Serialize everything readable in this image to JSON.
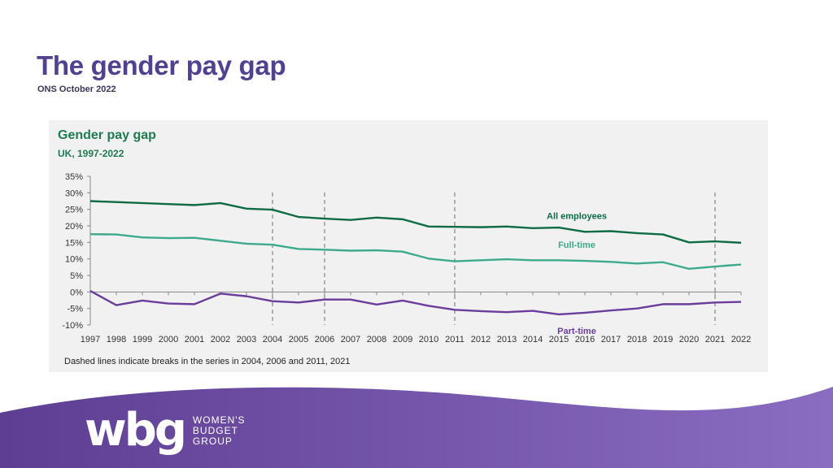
{
  "slide": {
    "title": "The gender pay gap",
    "subtitle": "ONS October 2022"
  },
  "chart_data": {
    "type": "line",
    "title": "Gender pay gap",
    "subtitle": "UK, 1997-2022",
    "note": "Dashed lines indicate breaks in the series in 2004, 2006 and 2011, 2021",
    "x": [
      1997,
      1998,
      1999,
      2000,
      2001,
      2002,
      2003,
      2004,
      2005,
      2006,
      2007,
      2008,
      2009,
      2010,
      2011,
      2012,
      2013,
      2014,
      2015,
      2016,
      2017,
      2018,
      2019,
      2020,
      2021,
      2022
    ],
    "ylim": [
      -10,
      35
    ],
    "yticks": [
      "35%",
      "30%",
      "25%",
      "20%",
      "15%",
      "10%",
      "5%",
      "0%",
      "-5%",
      "-10%"
    ],
    "ytick_values": [
      35,
      30,
      25,
      20,
      15,
      10,
      5,
      0,
      -5,
      -10
    ],
    "grid": false,
    "breaks": [
      2004,
      2006,
      2011,
      2021
    ],
    "series": [
      {
        "name": "All employees",
        "color": "#0e6b45",
        "values": [
          27.5,
          27.2,
          26.9,
          26.6,
          26.3,
          26.9,
          25.2,
          24.9,
          22.7,
          22.2,
          21.8,
          22.5,
          22.0,
          19.8,
          19.7,
          19.6,
          19.8,
          19.3,
          19.5,
          18.2,
          18.4,
          17.8,
          17.4,
          15.0,
          15.3,
          14.9
        ]
      },
      {
        "name": "Full-time",
        "color": "#3daa8c",
        "values": [
          17.5,
          17.4,
          16.5,
          16.3,
          16.4,
          15.5,
          14.6,
          14.3,
          13.0,
          12.8,
          12.5,
          12.6,
          12.2,
          10.1,
          9.3,
          9.6,
          9.9,
          9.6,
          9.6,
          9.4,
          9.1,
          8.6,
          9.0,
          7.0,
          7.7,
          8.3
        ]
      },
      {
        "name": "Part-time",
        "color": "#6a3d9a",
        "values": [
          0.3,
          -4.0,
          -2.6,
          -3.5,
          -3.7,
          -0.5,
          -1.3,
          -2.8,
          -3.2,
          -2.3,
          -2.3,
          -3.8,
          -2.6,
          -4.2,
          -5.4,
          -5.8,
          -6.1,
          -5.7,
          -6.8,
          -6.3,
          -5.6,
          -5.0,
          -3.7,
          -3.7,
          -3.2,
          -3.0
        ]
      }
    ]
  },
  "logo": {
    "mark": "wbg",
    "line1": "WOMEN'S",
    "line2": "BUDGET",
    "line3": "GROUP"
  },
  "colors": {
    "title": "#52418f",
    "footer_dark": "#5a3f8f",
    "footer_light": "#8a6cc0"
  }
}
